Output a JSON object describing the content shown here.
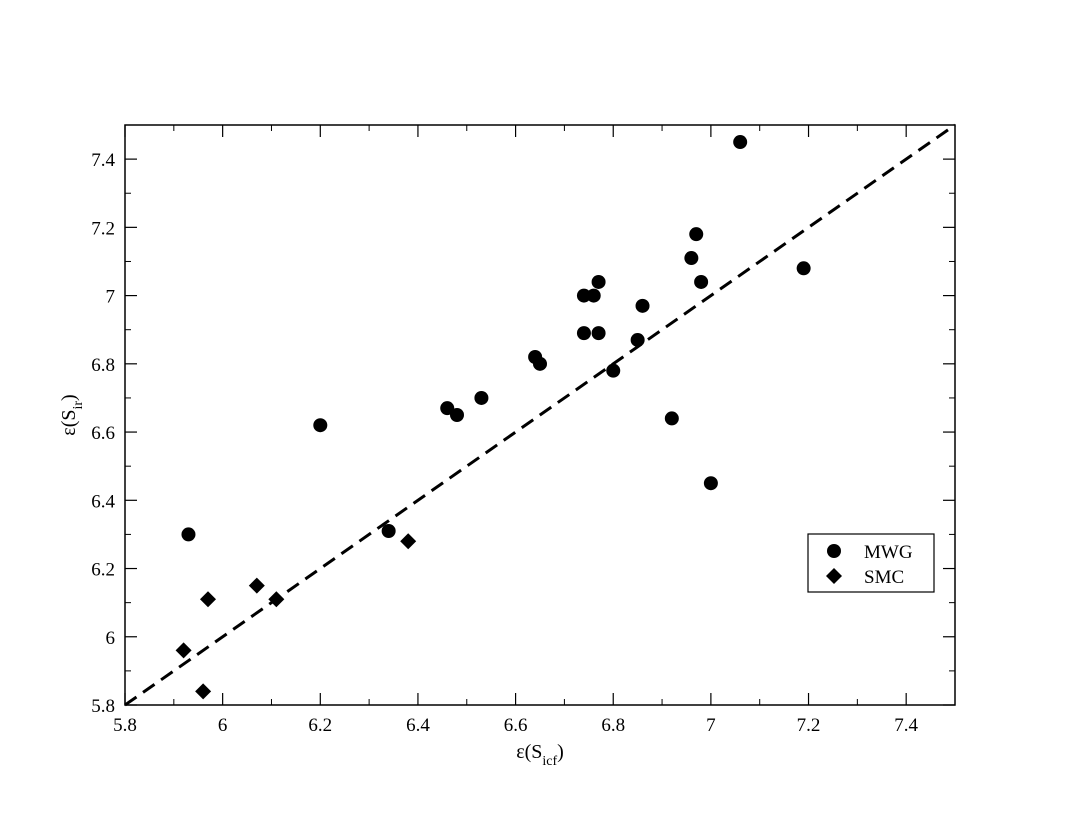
{
  "chart_data": {
    "type": "scatter",
    "title": "",
    "xlabel": {
      "base": "ε(S",
      "sub": "icf",
      "close": ")"
    },
    "ylabel": {
      "base": "ε(S",
      "sub": "ir",
      "close": ")"
    },
    "xlim": [
      5.8,
      7.5
    ],
    "ylim": [
      5.8,
      7.5
    ],
    "xticks": [
      "5.8",
      "6",
      "6.2",
      "6.4",
      "6.6",
      "6.8",
      "7",
      "7.2",
      "7.4"
    ],
    "yticks": [
      "5.8",
      "6",
      "6.2",
      "6.4",
      "6.6",
      "6.8",
      "7",
      "7.2",
      "7.4"
    ],
    "grid": false,
    "legend_position": "right",
    "reference_line": {
      "style": "dashed",
      "from": [
        5.8,
        5.8
      ],
      "to": [
        7.5,
        7.5
      ]
    },
    "series": [
      {
        "name": "MWG",
        "marker": "circle",
        "x": [
          5.93,
          6.2,
          6.34,
          6.46,
          6.48,
          6.53,
          6.64,
          6.65,
          6.74,
          6.74,
          6.76,
          6.77,
          6.77,
          6.8,
          6.85,
          6.86,
          6.92,
          6.96,
          6.97,
          6.98,
          7.0,
          7.06,
          7.19
        ],
        "y": [
          6.3,
          6.62,
          6.31,
          6.67,
          6.65,
          6.7,
          6.82,
          6.8,
          7.0,
          6.89,
          7.0,
          7.04,
          6.89,
          6.78,
          6.87,
          6.97,
          6.64,
          7.11,
          7.18,
          7.04,
          6.45,
          7.45,
          7.08
        ]
      },
      {
        "name": "SMC",
        "marker": "diamond",
        "x": [
          5.92,
          5.96,
          5.97,
          6.07,
          6.11,
          6.38
        ],
        "y": [
          5.96,
          5.84,
          6.11,
          6.15,
          6.11,
          6.28
        ]
      }
    ]
  }
}
